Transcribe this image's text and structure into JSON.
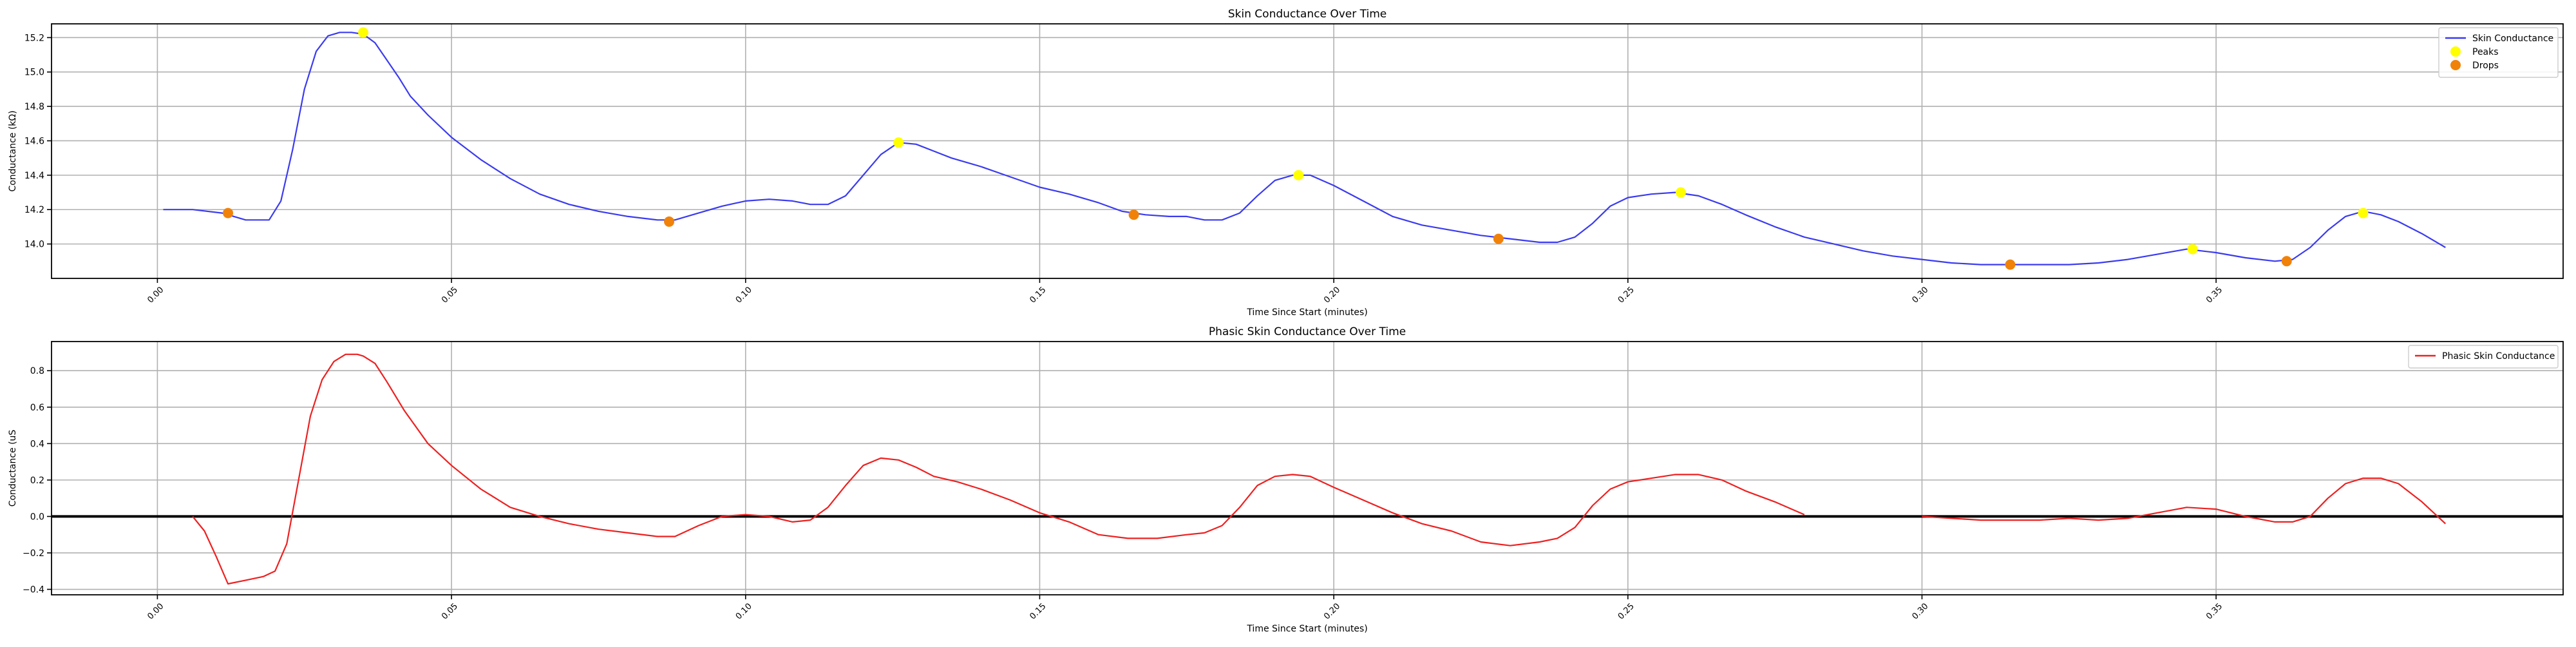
{
  "chart_data": [
    {
      "type": "line",
      "title": "Skin Conductance Over Time",
      "xlabel": "Time Since Start (minutes)",
      "ylabel": "Conductance (kΩ)",
      "xlim": [
        -0.018,
        0.409
      ],
      "ylim": [
        13.8,
        15.28
      ],
      "x_ticks": [
        0.0,
        0.05,
        0.1,
        0.15,
        0.2,
        0.25,
        0.3,
        0.35
      ],
      "x_tick_labels": [
        "0.00",
        "0.05",
        "0.10",
        "0.15",
        "0.20",
        "0.25",
        "0.30",
        "0.35"
      ],
      "y_ticks": [
        14.0,
        14.2,
        14.4,
        14.6,
        14.8,
        15.0,
        15.2
      ],
      "y_tick_labels": [
        "14.0",
        "14.2",
        "14.4",
        "14.6",
        "14.8",
        "15.0",
        "15.2"
      ],
      "grid": true,
      "legend": {
        "position": "top-right",
        "entries": [
          "Skin Conductance",
          "Peaks",
          "Drops"
        ]
      },
      "colors": {
        "line": "#3b3bf0",
        "peaks": "#ffff00",
        "drops": "#f0820a"
      },
      "series": [
        {
          "name": "Skin Conductance",
          "style": "line",
          "x": [
            0.001,
            0.006,
            0.011,
            0.015,
            0.019,
            0.021,
            0.023,
            0.025,
            0.027,
            0.029,
            0.031,
            0.033,
            0.035,
            0.037,
            0.039,
            0.041,
            0.043,
            0.046,
            0.05,
            0.055,
            0.06,
            0.065,
            0.07,
            0.075,
            0.08,
            0.085,
            0.088,
            0.092,
            0.096,
            0.1,
            0.104,
            0.108,
            0.111,
            0.114,
            0.117,
            0.12,
            0.123,
            0.126,
            0.129,
            0.132,
            0.135,
            0.14,
            0.145,
            0.15,
            0.155,
            0.16,
            0.164,
            0.168,
            0.172,
            0.175,
            0.178,
            0.181,
            0.184,
            0.187,
            0.19,
            0.193,
            0.196,
            0.2,
            0.205,
            0.21,
            0.215,
            0.22,
            0.225,
            0.23,
            0.235,
            0.238,
            0.241,
            0.244,
            0.247,
            0.25,
            0.254,
            0.258,
            0.262,
            0.266,
            0.27,
            0.275,
            0.28,
            0.285,
            0.29,
            0.295,
            0.3,
            0.305,
            0.31,
            0.315,
            0.32,
            0.325,
            0.33,
            0.335,
            0.34,
            0.345,
            0.35,
            0.355,
            0.36,
            0.363,
            0.366,
            0.369,
            0.372,
            0.375,
            0.378,
            0.381,
            0.385,
            0.389
          ],
          "y": [
            14.2,
            14.2,
            14.18,
            14.14,
            14.14,
            14.25,
            14.55,
            14.9,
            15.12,
            15.21,
            15.23,
            15.23,
            15.22,
            15.17,
            15.07,
            14.97,
            14.86,
            14.75,
            14.62,
            14.49,
            14.38,
            14.29,
            14.23,
            14.19,
            14.16,
            14.14,
            14.14,
            14.18,
            14.22,
            14.25,
            14.26,
            14.25,
            14.23,
            14.23,
            14.28,
            14.4,
            14.52,
            14.59,
            14.58,
            14.54,
            14.5,
            14.45,
            14.39,
            14.33,
            14.29,
            14.24,
            14.19,
            14.17,
            14.16,
            14.16,
            14.14,
            14.14,
            14.18,
            14.28,
            14.37,
            14.4,
            14.4,
            14.34,
            14.25,
            14.16,
            14.11,
            14.08,
            14.05,
            14.03,
            14.01,
            14.01,
            14.04,
            14.12,
            14.22,
            14.27,
            14.29,
            14.3,
            14.28,
            14.23,
            14.17,
            14.1,
            14.04,
            14.0,
            13.96,
            13.93,
            13.91,
            13.89,
            13.88,
            13.88,
            13.88,
            13.88,
            13.89,
            13.91,
            13.94,
            13.97,
            13.95,
            13.92,
            13.9,
            13.91,
            13.98,
            14.08,
            14.16,
            14.19,
            14.17,
            14.13,
            14.06,
            13.98
          ]
        },
        {
          "name": "Peaks",
          "style": "scatter",
          "x": [
            0.035,
            0.126,
            0.194,
            0.259,
            0.346,
            0.375
          ],
          "y": [
            15.23,
            14.59,
            14.4,
            14.3,
            13.97,
            14.18
          ]
        },
        {
          "name": "Drops",
          "style": "scatter",
          "x": [
            0.012,
            0.087,
            0.166,
            0.228,
            0.315,
            0.362
          ],
          "y": [
            14.18,
            14.13,
            14.17,
            14.03,
            13.88,
            13.9
          ]
        }
      ]
    },
    {
      "type": "line",
      "title": "Phasic Skin Conductance Over Time",
      "xlabel": "Time Since Start (minutes)",
      "ylabel": "Conductance (uS",
      "xlim": [
        -0.018,
        0.409
      ],
      "ylim": [
        -0.43,
        0.96
      ],
      "x_ticks": [
        0.0,
        0.05,
        0.1,
        0.15,
        0.2,
        0.25,
        0.3,
        0.35
      ],
      "x_tick_labels": [
        "0.00",
        "0.05",
        "0.10",
        "0.15",
        "0.20",
        "0.25",
        "0.30",
        "0.35"
      ],
      "y_ticks": [
        -0.4,
        -0.2,
        0.0,
        0.2,
        0.4,
        0.6,
        0.8
      ],
      "y_tick_labels": [
        "−0.4",
        "−0.2",
        "0.0",
        "0.2",
        "0.4",
        "0.6",
        "0.8"
      ],
      "grid": true,
      "zero_line": true,
      "legend": {
        "position": "top-right",
        "entries": [
          "Phasic Skin Conductance"
        ]
      },
      "colors": {
        "line": "#ee2020",
        "zero_line": "#000000"
      },
      "series": [
        {
          "name": "Phasic Skin Conductance",
          "style": "line",
          "x": [
            0.006,
            0.008,
            0.01,
            0.012,
            0.015,
            0.018,
            0.02,
            0.022,
            0.024,
            0.026,
            0.028,
            0.03,
            0.032,
            0.034,
            0.035,
            0.037,
            0.039,
            0.042,
            0.046,
            0.05,
            0.055,
            0.06,
            0.065,
            0.07,
            0.075,
            0.08,
            0.085,
            0.088,
            0.092,
            0.096,
            0.1,
            0.104,
            0.108,
            0.111,
            0.114,
            0.117,
            0.12,
            0.123,
            0.126,
            0.129,
            0.132,
            0.136,
            0.14,
            0.145,
            0.15,
            0.155,
            0.16,
            0.165,
            0.17,
            0.175,
            0.178,
            0.181,
            0.184,
            0.187,
            0.19,
            0.193,
            0.196,
            0.2,
            0.205,
            0.21,
            0.215,
            0.22,
            0.225,
            0.23,
            0.235,
            0.238,
            0.241,
            0.244,
            0.247,
            0.25,
            0.254,
            0.258,
            0.262,
            0.266,
            0.27,
            0.275,
            0.28
          ],
          "y": [
            0.0,
            -0.08,
            -0.22,
            -0.37,
            -0.35,
            -0.33,
            -0.3,
            -0.15,
            0.2,
            0.55,
            0.75,
            0.85,
            0.89,
            0.89,
            0.88,
            0.84,
            0.74,
            0.58,
            0.4,
            0.28,
            0.15,
            0.05,
            0.0,
            -0.04,
            -0.07,
            -0.09,
            -0.11,
            -0.11,
            -0.05,
            0.0,
            0.01,
            0.0,
            -0.03,
            -0.02,
            0.05,
            0.17,
            0.28,
            0.32,
            0.31,
            0.27,
            0.22,
            0.19,
            0.15,
            0.09,
            0.02,
            -0.03,
            -0.1,
            -0.12,
            -0.12,
            -0.1,
            -0.09,
            -0.05,
            0.05,
            0.17,
            0.22,
            0.23,
            0.22,
            0.16,
            0.09,
            0.02,
            -0.04,
            -0.08,
            -0.14,
            -0.16,
            -0.14,
            -0.12,
            -0.06,
            0.06,
            0.15,
            0.19,
            0.21,
            0.23,
            0.23,
            0.2,
            0.14,
            0.08,
            0.01
          ]
        },
        {
          "name": "Phasic Skin Conductance",
          "style": "line",
          "x": [
            0.3,
            0.305,
            0.31,
            0.315,
            0.32,
            0.325,
            0.33,
            0.335,
            0.34,
            0.345,
            0.35,
            0.355,
            0.36,
            0.363,
            0.366,
            0.369,
            0.372,
            0.375,
            0.378,
            0.381,
            0.385,
            0.389
          ],
          "y": [
            0.0,
            -0.01,
            -0.02,
            -0.02,
            -0.02,
            -0.01,
            -0.02,
            -0.01,
            0.02,
            0.05,
            0.04,
            0.0,
            -0.03,
            -0.03,
            0.0,
            0.1,
            0.18,
            0.21,
            0.21,
            0.18,
            0.08,
            -0.04
          ]
        }
      ]
    }
  ]
}
